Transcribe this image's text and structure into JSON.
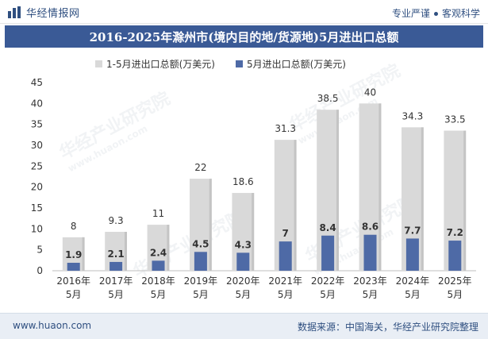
{
  "header": {
    "brand_name": "华经情报网",
    "tagline_left": "专业严谨",
    "tagline_right": "客观科学"
  },
  "title": "2016-2025年滁州市(境内目的地/货源地)5月进出口总额",
  "watermark": {
    "text": "华经产业研究院",
    "url": "www.huaon.com"
  },
  "colors": {
    "title_bg": "#3a5a96",
    "series_total": "#d9d9d9",
    "series_may": "#4e6aa6"
  },
  "chart_data": {
    "type": "bar",
    "categories": [
      "2016年\n5月",
      "2017年\n5月",
      "2018年\n5月",
      "2019年\n5月",
      "2020年\n5月",
      "2021年\n5月",
      "2022年\n5月",
      "2023年\n5月",
      "2024年\n5月",
      "2025年\n5月"
    ],
    "series": [
      {
        "name": "1-5月进出口总额(万美元)",
        "values": [
          8,
          9.3,
          11,
          22,
          18.6,
          31.3,
          38.5,
          40,
          34.3,
          33.5
        ]
      },
      {
        "name": "5月进出口总额(万美元)",
        "values": [
          1.9,
          2.1,
          2.4,
          4.5,
          4.3,
          7,
          8.4,
          8.6,
          7.7,
          7.2
        ]
      }
    ],
    "yticks": [
      0,
      5,
      10,
      15,
      20,
      25,
      30,
      35,
      40,
      45
    ],
    "ylim": [
      0,
      45
    ],
    "legend_position": "top",
    "grid": false
  },
  "footer": {
    "url": "www.huaon.com",
    "source": "数据来源：中国海关，华经产业研究院整理"
  }
}
